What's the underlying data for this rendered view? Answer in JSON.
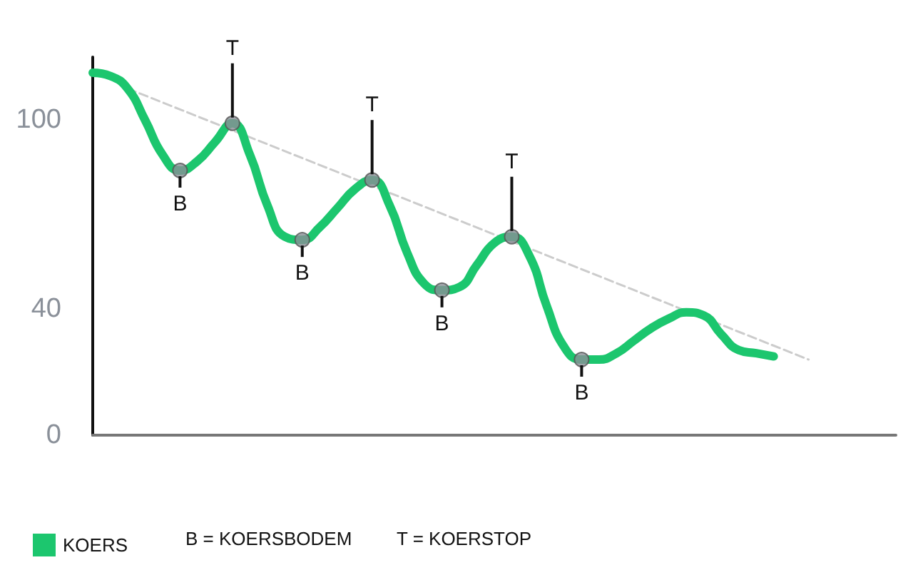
{
  "chart_data": {
    "type": "line",
    "categories": [
      null,
      null,
      null,
      null,
      null,
      null,
      null,
      null,
      null,
      null,
      null,
      null,
      null,
      null,
      null,
      null,
      null,
      null,
      null,
      null,
      null,
      null,
      null,
      null,
      null,
      null,
      null,
      null,
      null,
      null,
      null,
      null,
      null,
      null,
      null,
      null,
      null,
      null,
      null,
      null,
      null,
      null,
      null,
      null,
      null,
      null,
      null
    ],
    "series": [
      {
        "name": "KOERS",
        "color": "#1cc66e",
        "marker": "none",
        "line_style": "solid",
        "values": [
          115,
          114,
          110,
          100,
          89,
          84,
          87,
          93,
          99,
          89,
          73,
          63,
          62,
          66,
          72,
          78,
          81,
          73,
          58,
          48,
          46,
          47,
          54,
          61,
          63,
          57,
          41,
          28,
          24,
          24,
          26,
          30,
          34,
          37,
          39,
          38,
          32,
          27,
          26,
          25,
          null,
          null,
          null,
          null,
          null,
          null,
          null
        ]
      },
      {
        "type": "line",
        "color": "#cccccc",
        "marker": "none",
        "line_style": "dashed",
        "values": [
          null,
          null,
          110,
          null,
          null,
          null,
          null,
          null,
          null,
          null,
          null,
          null,
          null,
          null,
          null,
          null,
          null,
          null,
          null,
          null,
          null,
          null,
          null,
          null,
          null,
          null,
          null,
          null,
          null,
          null,
          null,
          null,
          null,
          null,
          null,
          null,
          null,
          null,
          null,
          null,
          null,
          24,
          null,
          null,
          null,
          null,
          null
        ]
      },
      {
        "type": "scatter",
        "color": "#8a8f96",
        "marker": "circle",
        "values": [
          null,
          null,
          null,
          null,
          null,
          84,
          null,
          null,
          99,
          null,
          null,
          null,
          62,
          null,
          null,
          null,
          81,
          null,
          null,
          null,
          46,
          null,
          null,
          null,
          63,
          null,
          null,
          null,
          24,
          null,
          null,
          null,
          null,
          null,
          null,
          null,
          null,
          null,
          null,
          null,
          null,
          null,
          null,
          null,
          null,
          null,
          null
        ]
      }
    ],
    "ylim": [
      0,
      120
    ],
    "yticks": [
      0,
      40,
      100
    ],
    "tick_labels": "y",
    "grid": false,
    "legend": "bottom left",
    "annotations": [
      {
        "text": "B",
        "y": 84
      },
      {
        "text": "T",
        "y": 99
      },
      {
        "text": "B",
        "y": 62
      },
      {
        "text": "T",
        "y": 81
      },
      {
        "text": "B",
        "y": 46
      },
      {
        "text": "T",
        "y": 63
      },
      {
        "text": "B",
        "y": 24
      },
      "B = KOERSBODEM",
      "T = KOERSTOP"
    ]
  }
}
